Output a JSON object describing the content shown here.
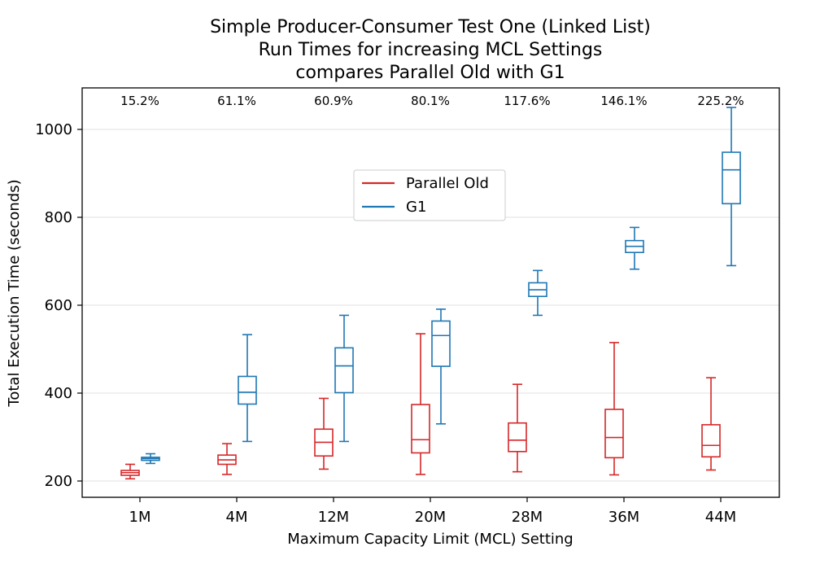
{
  "chart_data": {
    "type": "box",
    "title": [
      "Simple Producer-Consumer Test One (Linked List)",
      "Run Times for increasing MCL Settings",
      "compares Parallel Old with G1"
    ],
    "xlabel": "Maximum Capacity Limit (MCL) Setting",
    "ylabel": "Total Execution Time (seconds)",
    "categories": [
      "1M",
      "4M",
      "12M",
      "20M",
      "28M",
      "36M",
      "44M"
    ],
    "ylim": [
      160,
      1090
    ],
    "yticks": [
      200,
      400,
      600,
      800,
      1000
    ],
    "grid": "horizontal",
    "legend_position": "upper-center",
    "annotations": [
      "15.2%",
      "61.1%",
      "60.9%",
      "80.1%",
      "117.6%",
      "146.1%",
      "225.2%"
    ],
    "series": [
      {
        "name": "Parallel Old",
        "color": "#d62728",
        "boxes": [
          {
            "min": 205,
            "q1": 213,
            "median": 219,
            "q3": 224,
            "max": 238
          },
          {
            "min": 215,
            "q1": 238,
            "median": 248,
            "q3": 259,
            "max": 285
          },
          {
            "min": 227,
            "q1": 257,
            "median": 288,
            "q3": 318,
            "max": 388
          },
          {
            "min": 215,
            "q1": 264,
            "median": 294,
            "q3": 374,
            "max": 535
          },
          {
            "min": 221,
            "q1": 267,
            "median": 293,
            "q3": 332,
            "max": 420
          },
          {
            "min": 214,
            "q1": 253,
            "median": 299,
            "q3": 363,
            "max": 515
          },
          {
            "min": 225,
            "q1": 255,
            "median": 281,
            "q3": 328,
            "max": 435
          }
        ]
      },
      {
        "name": "G1",
        "color": "#1f77b4",
        "boxes": [
          {
            "min": 240,
            "q1": 247,
            "median": 251,
            "q3": 254,
            "max": 262
          },
          {
            "min": 290,
            "q1": 375,
            "median": 402,
            "q3": 438,
            "max": 533
          },
          {
            "min": 290,
            "q1": 401,
            "median": 462,
            "q3": 503,
            "max": 577
          },
          {
            "min": 330,
            "q1": 461,
            "median": 531,
            "q3": 564,
            "max": 591
          },
          {
            "min": 577,
            "q1": 620,
            "median": 635,
            "q3": 651,
            "max": 679
          },
          {
            "min": 682,
            "q1": 720,
            "median": 734,
            "q3": 747,
            "max": 777
          },
          {
            "min": 690,
            "q1": 831,
            "median": 908,
            "q3": 948,
            "max": 1050
          }
        ]
      }
    ]
  }
}
